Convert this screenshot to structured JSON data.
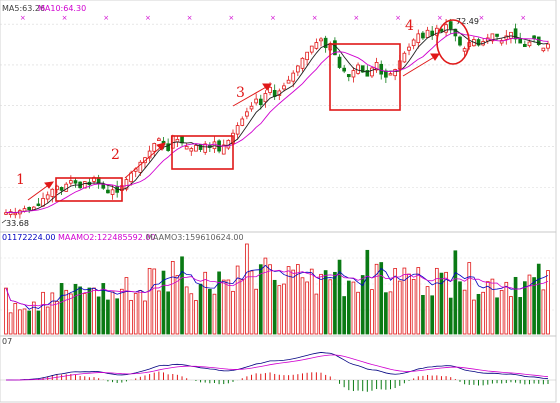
{
  "chart_data": {
    "type": "candlestick",
    "panels": [
      "price",
      "volume",
      "indicator"
    ],
    "price_panel": {
      "header": {
        "ma5_text": "MA5:63.26",
        "ma10_text": "MA10:64.30"
      },
      "low_label": "33.68",
      "high_label": "72.49",
      "colors": {
        "up": "#e01818",
        "down": "#0a7a14",
        "ma_short": "#202020",
        "ma_long": "#d000d0"
      },
      "y_grid_values": [
        40,
        48,
        56,
        64,
        72
      ]
    },
    "volume_panel": {
      "header": {
        "volume_text": "01172224.00",
        "maamo2_text": "MAAMO2:122485592.00",
        "maamo3_text": "MAAMO3:159610624.00"
      }
    },
    "indicator_panel": {
      "header": {
        "label": "07"
      }
    },
    "annotations": [
      {
        "label": "1",
        "shape": "box + arrow"
      },
      {
        "label": "2",
        "shape": "box + arrow"
      },
      {
        "label": "3",
        "shape": "box + arrow"
      },
      {
        "label": "4",
        "shape": "circle + arrow"
      }
    ],
    "close": [
      35.0,
      35.2,
      34.9,
      35.4,
      35.8,
      35.6,
      36.1,
      36.4,
      37.8,
      38.5,
      39.6,
      40.2,
      39.4,
      40.6,
      41.3,
      40.8,
      39.9,
      41.1,
      40.5,
      41.9,
      40.7,
      39.8,
      38.9,
      39.5,
      39.0,
      40.3,
      41.5,
      42.8,
      43.6,
      44.9,
      45.8,
      47.1,
      48.6,
      49.5,
      48.3,
      47.2,
      50.1,
      49.4,
      48.7,
      48.0,
      47.6,
      48.2,
      47.4,
      48.5,
      47.8,
      48.9,
      47.1,
      48.3,
      49.2,
      50.6,
      52.1,
      53.4,
      54.8,
      55.9,
      57.3,
      56.2,
      58.4,
      59.6,
      57.8,
      58.9,
      59.9,
      61.0,
      62.4,
      63.8,
      65.3,
      66.5,
      67.7,
      68.4,
      69.1,
      67.4,
      68.2,
      66.0,
      63.5,
      62.8,
      61.7,
      62.9,
      64.0,
      62.6,
      61.8,
      63.4,
      64.5,
      62.2,
      61.6,
      62.3,
      63.1,
      64.8,
      66.3,
      67.5,
      68.9,
      70.1,
      69.3,
      70.8,
      69.8,
      71.2,
      70.6,
      71.9,
      71.1,
      69.7,
      67.9,
      67.2,
      68.4,
      69.0,
      67.9,
      68.6,
      69.3,
      70.1,
      69.6,
      68.8,
      69.7,
      70.4,
      69.1,
      68.3,
      67.6,
      68.5,
      69.2,
      68.0,
      67.3,
      68.1
    ]
  }
}
